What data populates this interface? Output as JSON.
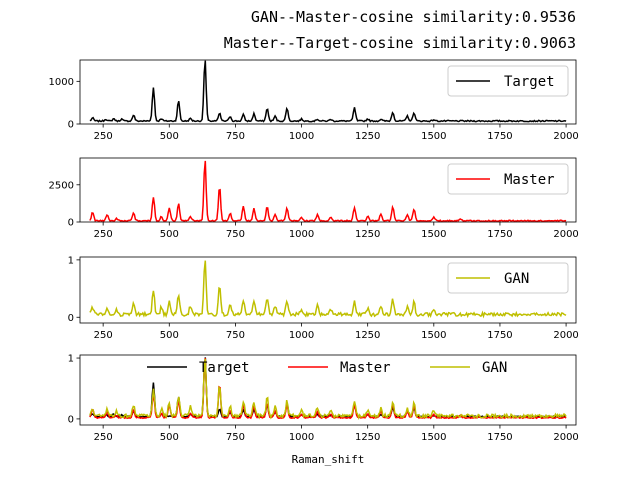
{
  "titles": [
    "GAN--Master-cosine similarity:0.9536",
    "Master--Target-cosine similarity:0.9063"
  ],
  "chart_data": [
    {
      "type": "line",
      "xlabel": "",
      "xlim": [
        200,
        2000
      ],
      "ylim": [
        0,
        1500
      ],
      "yticks": [
        0,
        1000
      ],
      "xticks": [
        250,
        500,
        750,
        1000,
        1250,
        1500,
        1750,
        2000
      ],
      "legend_position": "top-right",
      "series": [
        {
          "name": "Target",
          "color": "#000000",
          "baseline": 70,
          "noise": 15,
          "peaks": [
            [
              210,
              70
            ],
            [
              260,
              45
            ],
            [
              290,
              55
            ],
            [
              320,
              45
            ],
            [
              365,
              140
            ],
            [
              440,
              780
            ],
            [
              470,
              60
            ],
            [
              535,
              470
            ],
            [
              580,
              60
            ],
            [
              635,
              1450
            ],
            [
              690,
              180
            ],
            [
              730,
              110
            ],
            [
              780,
              150
            ],
            [
              820,
              170
            ],
            [
              870,
              300
            ],
            [
              900,
              110
            ],
            [
              945,
              310
            ],
            [
              1000,
              45
            ],
            [
              1060,
              45
            ],
            [
              1110,
              40
            ],
            [
              1200,
              310
            ],
            [
              1250,
              50
            ],
            [
              1300,
              40
            ],
            [
              1345,
              210
            ],
            [
              1400,
              120
            ],
            [
              1425,
              200
            ],
            [
              1500,
              30
            ]
          ]
        }
      ]
    },
    {
      "type": "line",
      "xlabel": "",
      "xlim": [
        200,
        2000
      ],
      "ylim": [
        0,
        4300
      ],
      "yticks": [
        0,
        2500
      ],
      "xticks": [
        250,
        500,
        750,
        1000,
        1250,
        1500,
        1750,
        2000
      ],
      "legend_position": "top-right",
      "series": [
        {
          "name": "Master",
          "color": "#ff0000",
          "baseline": 80,
          "noise": 40,
          "peaks": [
            [
              210,
              580
            ],
            [
              265,
              420
            ],
            [
              300,
              150
            ],
            [
              365,
              500
            ],
            [
              440,
              1600
            ],
            [
              470,
              300
            ],
            [
              500,
              900
            ],
            [
              535,
              1150
            ],
            [
              580,
              300
            ],
            [
              635,
              4100
            ],
            [
              690,
              2300
            ],
            [
              730,
              500
            ],
            [
              780,
              950
            ],
            [
              820,
              820
            ],
            [
              870,
              1000
            ],
            [
              900,
              400
            ],
            [
              945,
              850
            ],
            [
              1000,
              250
            ],
            [
              1060,
              400
            ],
            [
              1110,
              250
            ],
            [
              1200,
              880
            ],
            [
              1250,
              300
            ],
            [
              1300,
              450
            ],
            [
              1345,
              930
            ],
            [
              1400,
              400
            ],
            [
              1425,
              800
            ],
            [
              1500,
              250
            ],
            [
              1600,
              150
            ]
          ]
        }
      ]
    },
    {
      "type": "line",
      "xlabel": "",
      "xlim": [
        200,
        2000
      ],
      "ylim": [
        -0.1,
        1.05
      ],
      "yticks": [
        0,
        1
      ],
      "xticks": [
        250,
        500,
        750,
        1000,
        1250,
        1500,
        1750,
        2000
      ],
      "legend_position": "top-right",
      "series": [
        {
          "name": "GAN",
          "color": "#bfbf00",
          "baseline": 0.05,
          "noise": 0.03,
          "peaks": [
            [
              210,
              0.12
            ],
            [
              265,
              0.1
            ],
            [
              300,
              0.08
            ],
            [
              365,
              0.18
            ],
            [
              440,
              0.42
            ],
            [
              470,
              0.12
            ],
            [
              500,
              0.22
            ],
            [
              535,
              0.32
            ],
            [
              580,
              0.15
            ],
            [
              635,
              0.98
            ],
            [
              690,
              0.5
            ],
            [
              730,
              0.18
            ],
            [
              780,
              0.25
            ],
            [
              820,
              0.22
            ],
            [
              870,
              0.3
            ],
            [
              900,
              0.15
            ],
            [
              945,
              0.25
            ],
            [
              1000,
              0.1
            ],
            [
              1060,
              0.15
            ],
            [
              1110,
              0.1
            ],
            [
              1200,
              0.25
            ],
            [
              1250,
              0.1
            ],
            [
              1300,
              0.12
            ],
            [
              1345,
              0.25
            ],
            [
              1400,
              0.12
            ],
            [
              1425,
              0.22
            ],
            [
              1500,
              0.08
            ]
          ]
        }
      ]
    },
    {
      "type": "line",
      "xlabel": "Raman_shift",
      "xlim": [
        200,
        2000
      ],
      "ylim": [
        -0.1,
        1.05
      ],
      "yticks": [
        0,
        1
      ],
      "xticks": [
        250,
        500,
        750,
        1000,
        1250,
        1500,
        1750,
        2000
      ],
      "legend_position": "top-center",
      "series": [
        {
          "name": "Target",
          "color": "#000000",
          "baseline": 0.04,
          "noise": 0.01,
          "peaks": [
            [
              210,
              0.05
            ],
            [
              260,
              0.03
            ],
            [
              290,
              0.04
            ],
            [
              320,
              0.03
            ],
            [
              365,
              0.09
            ],
            [
              440,
              0.55
            ],
            [
              470,
              0.04
            ],
            [
              535,
              0.32
            ],
            [
              580,
              0.04
            ],
            [
              635,
              1.0
            ],
            [
              690,
              0.12
            ],
            [
              730,
              0.07
            ],
            [
              780,
              0.1
            ],
            [
              820,
              0.12
            ],
            [
              870,
              0.2
            ],
            [
              900,
              0.07
            ],
            [
              945,
              0.22
            ],
            [
              1000,
              0.03
            ],
            [
              1060,
              0.03
            ],
            [
              1110,
              0.02
            ],
            [
              1200,
              0.22
            ],
            [
              1250,
              0.03
            ],
            [
              1300,
              0.03
            ],
            [
              1345,
              0.14
            ],
            [
              1400,
              0.08
            ],
            [
              1425,
              0.14
            ],
            [
              1500,
              0.02
            ]
          ]
        },
        {
          "name": "Master",
          "color": "#ff0000",
          "baseline": 0.02,
          "noise": 0.01,
          "peaks": [
            [
              210,
              0.14
            ],
            [
              265,
              0.1
            ],
            [
              300,
              0.04
            ],
            [
              365,
              0.12
            ],
            [
              440,
              0.39
            ],
            [
              470,
              0.07
            ],
            [
              500,
              0.22
            ],
            [
              535,
              0.28
            ],
            [
              580,
              0.07
            ],
            [
              635,
              1.0
            ],
            [
              690,
              0.56
            ],
            [
              730,
              0.12
            ],
            [
              780,
              0.23
            ],
            [
              820,
              0.2
            ],
            [
              870,
              0.24
            ],
            [
              900,
              0.1
            ],
            [
              945,
              0.21
            ],
            [
              1000,
              0.06
            ],
            [
              1060,
              0.1
            ],
            [
              1110,
              0.06
            ],
            [
              1200,
              0.21
            ],
            [
              1250,
              0.07
            ],
            [
              1300,
              0.11
            ],
            [
              1345,
              0.23
            ],
            [
              1400,
              0.1
            ],
            [
              1425,
              0.2
            ],
            [
              1500,
              0.06
            ],
            [
              1600,
              0.04
            ]
          ]
        },
        {
          "name": "GAN",
          "color": "#bfbf00",
          "baseline": 0.05,
          "noise": 0.03,
          "peaks": [
            [
              210,
              0.12
            ],
            [
              265,
              0.1
            ],
            [
              300,
              0.08
            ],
            [
              365,
              0.18
            ],
            [
              440,
              0.42
            ],
            [
              470,
              0.12
            ],
            [
              500,
              0.22
            ],
            [
              535,
              0.32
            ],
            [
              580,
              0.15
            ],
            [
              635,
              0.98
            ],
            [
              690,
              0.5
            ],
            [
              730,
              0.18
            ],
            [
              780,
              0.25
            ],
            [
              820,
              0.22
            ],
            [
              870,
              0.3
            ],
            [
              900,
              0.15
            ],
            [
              945,
              0.25
            ],
            [
              1000,
              0.1
            ],
            [
              1060,
              0.15
            ],
            [
              1110,
              0.1
            ],
            [
              1200,
              0.25
            ],
            [
              1250,
              0.1
            ],
            [
              1300,
              0.12
            ],
            [
              1345,
              0.25
            ],
            [
              1400,
              0.12
            ],
            [
              1425,
              0.22
            ],
            [
              1500,
              0.08
            ]
          ]
        }
      ]
    }
  ]
}
